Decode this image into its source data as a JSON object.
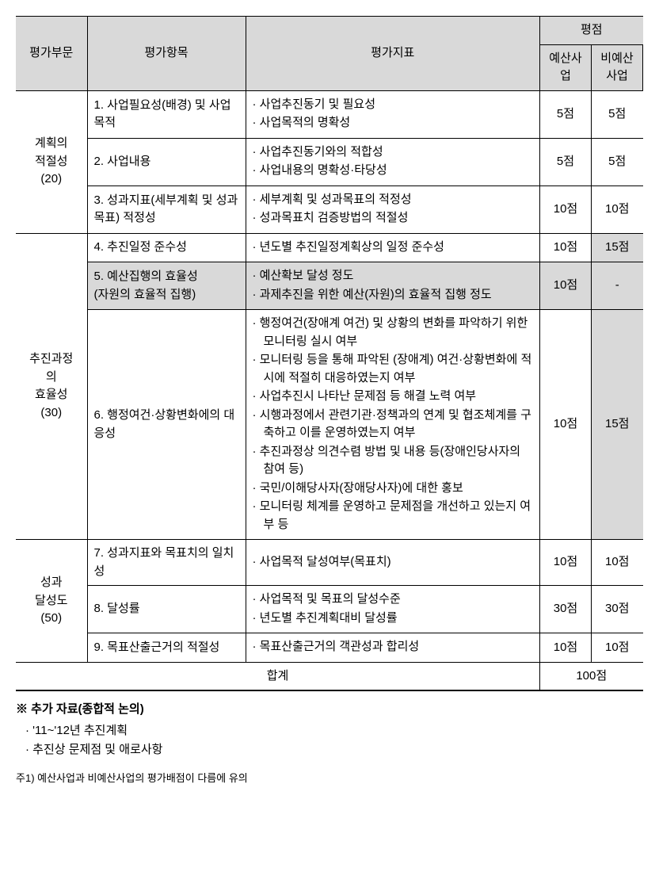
{
  "headers": {
    "category": "평가부문",
    "item": "평가항목",
    "indicator": "평가지표",
    "score": "평점",
    "budget": "예산사업",
    "nonbudget": "비예산사업"
  },
  "categories": [
    {
      "name": "계획의\n적절성\n(20)",
      "rows": 3,
      "items": [
        {
          "label": "1. 사업필요성(배경) 및 사업목적",
          "indicators": [
            "사업추진동기 및 필요성",
            "사업목적의 명확성"
          ],
          "budget": "5점",
          "nonbudget": "5점"
        },
        {
          "label": "2. 사업내용",
          "indicators": [
            "사업추진동기와의 적합성",
            "사업내용의 명확성·타당성"
          ],
          "budget": "5점",
          "nonbudget": "5점"
        },
        {
          "label": "3. 성과지표(세부계획 및 성과목표) 적정성",
          "indicators": [
            "세부계획 및 성과목표의 적정성",
            "성과목표치 검증방법의 적절성"
          ],
          "budget": "10점",
          "nonbudget": "10점"
        }
      ]
    },
    {
      "name": "추진과정\n의\n효율성\n(30)",
      "rows": 3,
      "items": [
        {
          "label": "4. 추진일정 준수성",
          "indicators": [
            "년도별 추진일정계획상의 일정 준수성"
          ],
          "budget": "10점",
          "nonbudget": "15점",
          "nonbudget_shaded": true
        },
        {
          "label": "5. 예산집행의 효율성\n   (자원의 효율적 집행)",
          "row_shaded": true,
          "indicators": [
            "예산확보 달성 정도",
            "과제추진을 위한 예산(자원)의 효율적 집행 정도"
          ],
          "budget": "10점",
          "nonbudget": "-"
        },
        {
          "label": "6. 행정여건·상황변화에의 대응성",
          "indicators": [
            "행정여건(장애계 여건) 및  상황의 변화를 파악하기 위한 모니터링 실시 여부",
            "모니터링 등을 통해 파악된 (장애계) 여건·상황변화에 적시에 적절히 대응하였는지 여부",
            "사업추진시 나타난 문제점 등 해결 노력 여부",
            "시행과정에서 관련기관·정책과의 연계 및 협조체계를 구축하고 이를 운영하였는지 여부",
            "추진과정상 의견수렴 방법 및 내용 등(장애인당사자의 참여 등)",
            "국민/이해당사자(장애당사자)에 대한 홍보",
            "모니터링 체계를 운영하고 문제점을 개선하고 있는지 여부 등"
          ],
          "budget": "10점",
          "nonbudget": "15점",
          "nonbudget_shaded": true
        }
      ]
    },
    {
      "name": "성과\n달성도\n(50)",
      "rows": 3,
      "items": [
        {
          "label": "7. 성과지표와 목표치의 일치성",
          "indicators": [
            "사업목적 달성여부(목표치)"
          ],
          "budget": "10점",
          "nonbudget": "10점"
        },
        {
          "label": "8. 달성률",
          "indicators": [
            "사업목적 및 목표의 달성수준",
            "년도별 추진계획대비 달성률"
          ],
          "budget": "30점",
          "nonbudget": "30점"
        },
        {
          "label": "9. 목표산출근거의 적절성",
          "indicators": [
            "목표산출근거의 객관성과 합리성"
          ],
          "budget": "10점",
          "nonbudget": "10점"
        }
      ]
    }
  ],
  "total": {
    "label": "합계",
    "value": "100점"
  },
  "notes": {
    "title": "※ 추가 자료(종합적 논의)",
    "items": [
      "'11~'12년 추진계획",
      "추진상 문제점 및 애로사항"
    ]
  },
  "footnote": "주1) 예산사업과 비예산사업의 평가배점이 다름에 유의"
}
